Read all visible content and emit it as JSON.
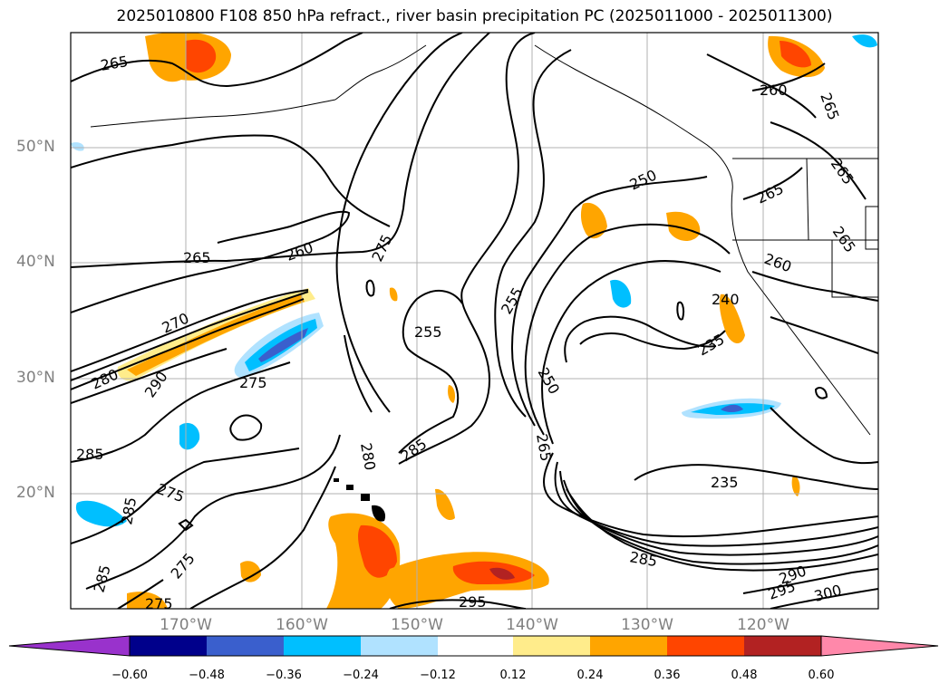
{
  "title": "2025010800 F108 850 hPa refract., river basin precipitation PC (2025011000 - 2025011300)",
  "map": {
    "lat_labels": [
      "50°N",
      "40°N",
      "30°N",
      "20°N"
    ],
    "lon_labels": [
      "170°W",
      "160°W",
      "150°W",
      "140°W",
      "130°W",
      "120°W"
    ],
    "grid": true,
    "contour_labels": [
      "265",
      "260",
      "265",
      "265",
      "265",
      "265",
      "260",
      "250",
      "265",
      "260",
      "240",
      "235",
      "275",
      "255",
      "255",
      "250",
      "270",
      "280",
      "290",
      "275",
      "285",
      "275",
      "285",
      "275",
      "285",
      "280",
      "285",
      "265",
      "235",
      "285",
      "290",
      "295",
      "300",
      "275",
      "295"
    ]
  },
  "colorbar": {
    "ticks": [
      "−0.60",
      "−0.48",
      "−0.36",
      "−0.24",
      "−0.12",
      "0.12",
      "0.24",
      "0.36",
      "0.48",
      "0.60"
    ],
    "colors": [
      "#9932cc",
      "#00008b",
      "#3a5fcd",
      "#00bfff",
      "#b0e2ff",
      "#ffffff",
      "#ffec8b",
      "#ffa500",
      "#ff4500",
      "#b22222",
      "#ff88aa"
    ]
  }
}
